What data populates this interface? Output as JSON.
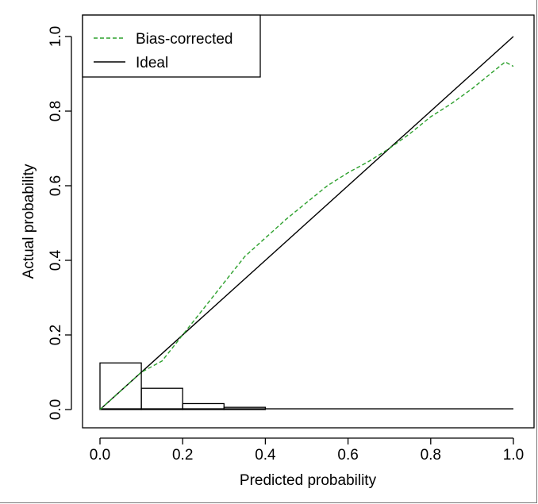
{
  "chart_data": {
    "type": "line",
    "xlabel": "Predicted probability",
    "ylabel": "Actual probability",
    "xlim": [
      0,
      1
    ],
    "ylim": [
      0,
      1
    ],
    "x_ticks": [
      "0.0",
      "0.2",
      "0.4",
      "0.6",
      "0.8",
      "1.0"
    ],
    "y_ticks": [
      "0.0",
      "0.2",
      "0.4",
      "0.6",
      "0.8",
      "1.0"
    ],
    "legend_position": "top-left",
    "series": [
      {
        "name": "Bias-corrected",
        "color": "#2ca02c",
        "style": "dashed",
        "x": [
          0.0,
          0.05,
          0.1,
          0.15,
          0.2,
          0.25,
          0.3,
          0.35,
          0.4,
          0.45,
          0.5,
          0.55,
          0.6,
          0.65,
          0.7,
          0.75,
          0.8,
          0.85,
          0.9,
          0.95,
          0.98,
          1.0
        ],
        "y": [
          0.0,
          0.05,
          0.1,
          0.13,
          0.2,
          0.27,
          0.34,
          0.41,
          0.46,
          0.51,
          0.555,
          0.6,
          0.635,
          0.665,
          0.7,
          0.74,
          0.785,
          0.82,
          0.86,
          0.905,
          0.932,
          0.92
        ]
      },
      {
        "name": "Ideal",
        "color": "#000000",
        "style": "solid",
        "x": [
          0,
          1
        ],
        "y": [
          0,
          1
        ]
      }
    ],
    "histogram": {
      "bins": [
        [
          0.0,
          0.1
        ],
        [
          0.1,
          0.2
        ],
        [
          0.2,
          0.3
        ],
        [
          0.3,
          0.4
        ]
      ],
      "heights": [
        0.125,
        0.057,
        0.016,
        0.006
      ]
    },
    "baseline": {
      "x": [
        0,
        1
      ],
      "y": 0.002
    }
  }
}
